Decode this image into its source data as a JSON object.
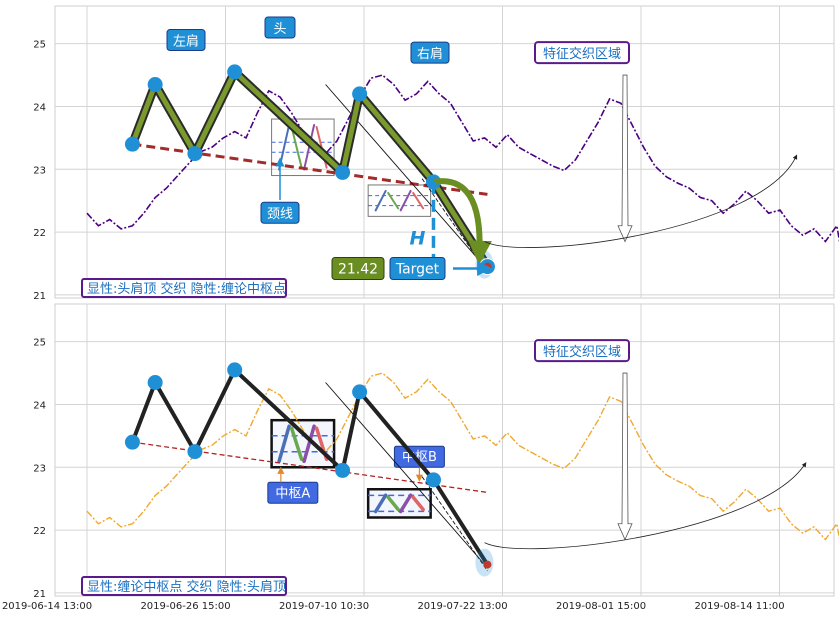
{
  "chart_data": [
    {
      "type": "line",
      "ylim": [
        20.95,
        25.6
      ],
      "yticks": [
        "21",
        "22",
        "23",
        "24",
        "25"
      ],
      "grid": true,
      "price": [
        [
          0,
          22.3
        ],
        [
          4,
          22.1
        ],
        [
          8,
          22.2
        ],
        [
          12,
          22.05
        ],
        [
          16,
          22.1
        ],
        [
          20,
          22.3
        ],
        [
          24,
          22.55
        ],
        [
          28,
          22.7
        ],
        [
          32,
          22.9
        ],
        [
          36,
          23.1
        ],
        [
          40,
          23.28
        ],
        [
          44,
          23.35
        ],
        [
          48,
          23.5
        ],
        [
          52,
          23.6
        ],
        [
          56,
          23.5
        ],
        [
          60,
          23.9
        ],
        [
          64,
          24.25
        ],
        [
          68,
          24.15
        ],
        [
          72,
          23.9
        ],
        [
          76,
          23.6
        ],
        [
          80,
          23.35
        ],
        [
          84,
          23.25
        ],
        [
          88,
          23.45
        ],
        [
          92,
          23.8
        ],
        [
          96,
          24.15
        ],
        [
          100,
          24.45
        ],
        [
          104,
          24.5
        ],
        [
          108,
          24.35
        ],
        [
          112,
          24.1
        ],
        [
          116,
          24.2
        ],
        [
          120,
          24.4
        ],
        [
          124,
          24.2
        ],
        [
          128,
          24.05
        ],
        [
          132,
          23.75
        ],
        [
          136,
          23.45
        ],
        [
          140,
          23.5
        ],
        [
          144,
          23.35
        ],
        [
          148,
          23.55
        ],
        [
          152,
          23.35
        ],
        [
          156,
          23.25
        ],
        [
          160,
          23.15
        ],
        [
          164,
          23.05
        ],
        [
          168,
          22.98
        ],
        [
          172,
          23.15
        ],
        [
          176,
          23.45
        ],
        [
          180,
          23.75
        ],
        [
          184,
          24.12
        ],
        [
          188,
          24.05
        ],
        [
          192,
          23.7
        ],
        [
          196,
          23.35
        ],
        [
          200,
          23.05
        ],
        [
          204,
          22.88
        ],
        [
          208,
          22.78
        ],
        [
          212,
          22.7
        ],
        [
          216,
          22.55
        ],
        [
          220,
          22.5
        ],
        [
          224,
          22.3
        ],
        [
          228,
          22.45
        ],
        [
          232,
          22.65
        ],
        [
          236,
          22.5
        ],
        [
          240,
          22.3
        ],
        [
          244,
          22.35
        ],
        [
          248,
          22.1
        ],
        [
          252,
          21.95
        ],
        [
          256,
          22.05
        ],
        [
          260,
          21.85
        ],
        [
          264,
          22.1
        ],
        [
          266,
          21.6
        ],
        [
          268,
          21.85
        ]
      ],
      "zigzag": [
        [
          16,
          23.4
        ],
        [
          24,
          24.35
        ],
        [
          38,
          23.25
        ],
        [
          52,
          24.55
        ],
        [
          90,
          22.95
        ],
        [
          96,
          24.2
        ],
        [
          122,
          22.8
        ],
        [
          141,
          21.45
        ]
      ],
      "neckline": [
        [
          16,
          23.4
        ],
        [
          141,
          22.6
        ]
      ],
      "breakdown_arc": [
        [
          122,
          22.8
        ],
        [
          135,
          22.65
        ],
        [
          141,
          21.45
        ]
      ],
      "measure_h": {
        "x": 122,
        "from": 22.8,
        "to": 21.45,
        "label": "H"
      },
      "target": {
        "value": "21.42",
        "label": "Target",
        "y": 21.42
      },
      "zones": [
        {
          "x": [
            65,
            87
          ],
          "y": [
            22.9,
            23.8
          ]
        },
        {
          "x": [
            99,
            121
          ],
          "y": [
            22.25,
            22.75
          ]
        }
      ],
      "annotations": [
        {
          "text": "左肩",
          "x": 16,
          "y": 25.05
        },
        {
          "text": "头",
          "x": 50,
          "y": 25.25
        },
        {
          "text": "右肩",
          "x": 82,
          "y": 24.85
        },
        {
          "text": "颈线",
          "x": 45,
          "y": 22.3
        },
        {
          "text": "特征交织区域",
          "x": 122,
          "y": 24.85
        }
      ],
      "caption": "显性:头肩顶 交织 隐性:缠论中枢点"
    },
    {
      "type": "line",
      "ylim": [
        20.95,
        25.6
      ],
      "yticks": [
        "21",
        "22",
        "23",
        "24",
        "25"
      ],
      "grid": true,
      "price": [
        [
          0,
          22.3
        ],
        [
          4,
          22.1
        ],
        [
          8,
          22.2
        ],
        [
          12,
          22.05
        ],
        [
          16,
          22.1
        ],
        [
          20,
          22.3
        ],
        [
          24,
          22.55
        ],
        [
          28,
          22.7
        ],
        [
          32,
          22.9
        ],
        [
          36,
          23.1
        ],
        [
          40,
          23.28
        ],
        [
          44,
          23.35
        ],
        [
          48,
          23.5
        ],
        [
          52,
          23.6
        ],
        [
          56,
          23.5
        ],
        [
          60,
          23.9
        ],
        [
          64,
          24.25
        ],
        [
          68,
          24.15
        ],
        [
          72,
          23.9
        ],
        [
          76,
          23.6
        ],
        [
          80,
          23.35
        ],
        [
          84,
          23.25
        ],
        [
          88,
          23.45
        ],
        [
          92,
          23.8
        ],
        [
          96,
          24.15
        ],
        [
          100,
          24.45
        ],
        [
          104,
          24.5
        ],
        [
          108,
          24.35
        ],
        [
          112,
          24.1
        ],
        [
          116,
          24.2
        ],
        [
          120,
          24.4
        ],
        [
          124,
          24.2
        ],
        [
          128,
          24.05
        ],
        [
          132,
          23.75
        ],
        [
          136,
          23.45
        ],
        [
          140,
          23.5
        ],
        [
          144,
          23.35
        ],
        [
          148,
          23.55
        ],
        [
          152,
          23.35
        ],
        [
          156,
          23.25
        ],
        [
          160,
          23.15
        ],
        [
          164,
          23.05
        ],
        [
          168,
          22.98
        ],
        [
          172,
          23.15
        ],
        [
          176,
          23.45
        ],
        [
          180,
          23.75
        ],
        [
          184,
          24.12
        ],
        [
          188,
          24.05
        ],
        [
          192,
          23.7
        ],
        [
          196,
          23.35
        ],
        [
          200,
          23.05
        ],
        [
          204,
          22.88
        ],
        [
          208,
          22.78
        ],
        [
          212,
          22.7
        ],
        [
          216,
          22.55
        ],
        [
          220,
          22.5
        ],
        [
          224,
          22.3
        ],
        [
          228,
          22.45
        ],
        [
          232,
          22.65
        ],
        [
          236,
          22.5
        ],
        [
          240,
          22.3
        ],
        [
          244,
          22.35
        ],
        [
          248,
          22.1
        ],
        [
          252,
          21.95
        ],
        [
          256,
          22.05
        ],
        [
          260,
          21.85
        ],
        [
          264,
          22.1
        ],
        [
          266,
          21.6
        ],
        [
          268,
          21.85
        ]
      ],
      "zigzag": [
        [
          16,
          23.4
        ],
        [
          24,
          24.35
        ],
        [
          38,
          23.25
        ],
        [
          52,
          24.55
        ],
        [
          90,
          22.95
        ],
        [
          96,
          24.2
        ],
        [
          122,
          22.8
        ],
        [
          141,
          21.45
        ]
      ],
      "neckline": [
        [
          16,
          23.4
        ],
        [
          141,
          22.6
        ]
      ],
      "zones": [
        {
          "x": [
            65,
            87
          ],
          "y": [
            23.0,
            23.75
          ],
          "label": "中枢A"
        },
        {
          "x": [
            99,
            121
          ],
          "y": [
            22.2,
            22.65
          ],
          "label": "中枢B"
        }
      ],
      "annotations": [
        {
          "text": "特征交织区域",
          "x": 122,
          "y": 24.85
        }
      ],
      "caption": "显性:缠论中枢点 交织 隐性:头肩顶"
    }
  ],
  "x_axis": {
    "ticks": [
      "2019-06-14 13:00",
      "2019-06-26 15:00",
      "2019-07-10 10:30",
      "2019-07-22 13:00",
      "2019-08-01 15:00",
      "2019-08-14 11:00"
    ]
  },
  "colors": {
    "price_top": "#4b0082",
    "price_bottom": "#f0a830",
    "zigzag_top_outer": "#2b2b2b",
    "zigzag_top_inner": "#7a9a2e",
    "zigzag_bottom": "#222222",
    "node": "#1f8fd6",
    "neckline_top": "#a52a2a",
    "neckline_bottom": "#b22222",
    "label_bg": "#1f8fd6",
    "label_border": "#1a3a8a",
    "caption_border": "#5b1a8c",
    "caption_text": "#1a6fc0",
    "target_value_bg": "#6b8e23",
    "zone_a_fill": "#4169e1"
  }
}
